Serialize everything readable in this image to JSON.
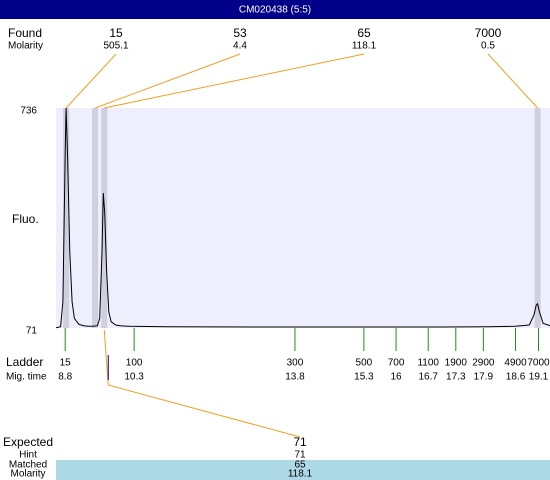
{
  "chart_data": {
    "type": "electropherogram",
    "title": "CM020438 (5:5)",
    "y_label": "Fluo.",
    "ylim": [
      71,
      736
    ],
    "yticks": [
      736,
      71
    ],
    "xlim": [
      8.6,
      19.35
    ],
    "trace_color": "#000000",
    "found_label": "Found",
    "molarity_label": "Molarity",
    "found": [
      {
        "size": 15,
        "molarity": 505.1,
        "time": 8.82
      },
      {
        "size": 53,
        "molarity": 4.4,
        "time": 9.45
      },
      {
        "size": 65,
        "molarity": 118.1,
        "time": 9.65
      },
      {
        "size": 7000,
        "molarity": 0.5,
        "time": 19.08
      }
    ],
    "ladder_label": "Ladder",
    "time_label": "Mig. time",
    "ladder": [
      {
        "size": 15,
        "time": 8.8
      },
      {
        "size": 100,
        "time": 10.3
      },
      {
        "size": 300,
        "time": 13.8
      },
      {
        "size": 500,
        "time": 15.3
      },
      {
        "size": 700,
        "time": 16
      },
      {
        "size": 1100,
        "time": 16.7
      },
      {
        "size": 1900,
        "time": 17.3
      },
      {
        "size": 2900,
        "time": 17.9
      },
      {
        "size": 4900,
        "time": 18.6
      },
      {
        "size": 7000,
        "time": 19.1
      }
    ],
    "trace": {
      "x": [
        8.6,
        8.7,
        8.75,
        8.8,
        8.82,
        8.85,
        8.9,
        8.95,
        9.0,
        9.1,
        9.2,
        9.3,
        9.4,
        9.5,
        9.55,
        9.6,
        9.63,
        9.66,
        9.7,
        9.75,
        9.8,
        9.9,
        10.0,
        10.2,
        11,
        13,
        15,
        17,
        18,
        18.6,
        18.9,
        19.0,
        19.05,
        19.08,
        19.12,
        19.2,
        19.35
      ],
      "values": [
        72,
        75,
        150,
        600,
        736,
        600,
        300,
        150,
        100,
        82,
        78,
        76,
        76,
        78,
        100,
        300,
        479,
        420,
        250,
        120,
        90,
        80,
        78,
        76,
        75,
        74,
        74,
        74,
        75,
        76,
        80,
        110,
        140,
        144,
        120,
        85,
        78
      ]
    },
    "expected": {
      "labels": [
        "Expected",
        "Hint",
        "Matched",
        "Molarity"
      ],
      "values": [
        71,
        71,
        65,
        118.1
      ]
    }
  }
}
